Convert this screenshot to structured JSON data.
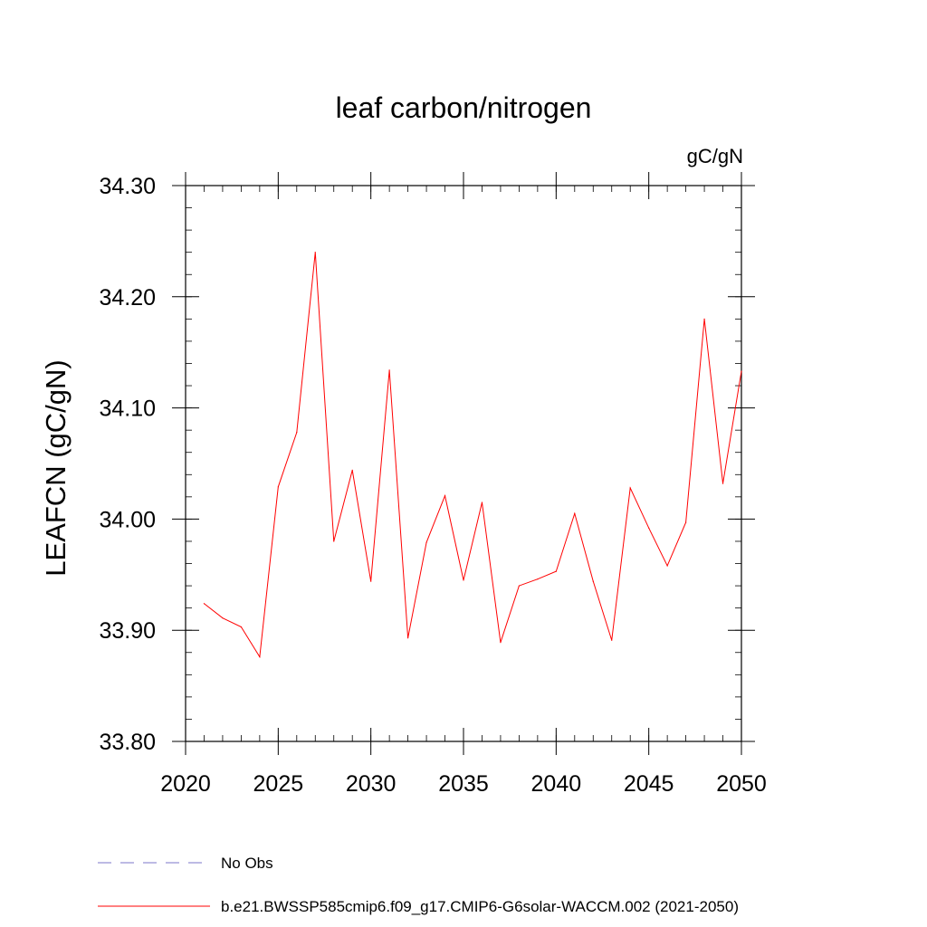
{
  "chart_data": {
    "type": "line",
    "title": "leaf carbon/nitrogen",
    "units": "gC/gN",
    "ylabel": "LEAFCN  (gC/gN)",
    "xlabel": "",
    "xlim": [
      2020,
      2050
    ],
    "ylim": [
      33.8,
      34.3
    ],
    "x_major_ticks": [
      2020,
      2025,
      2030,
      2035,
      2040,
      2045,
      2050
    ],
    "x_tick_labels": [
      "2020",
      "2025",
      "2030",
      "2035",
      "2040",
      "2045",
      "2050"
    ],
    "y_major_ticks": [
      33.8,
      33.9,
      34.0,
      34.1,
      34.2,
      34.3
    ],
    "y_tick_labels": [
      "33.80",
      "33.90",
      "34.00",
      "34.10",
      "34.20",
      "34.30"
    ],
    "x_minor_step": 1,
    "y_minor_step": 0.02,
    "grid": false,
    "series": [
      {
        "name": "b.e21.BWSSP585cmip6.f09_g17.CMIP6-G6solar-WACCM.002 (2021-2050)",
        "color": "#ff0000",
        "style": "solid",
        "x": [
          2021,
          2022,
          2023,
          2024,
          2025,
          2026,
          2027,
          2028,
          2029,
          2030,
          2031,
          2032,
          2033,
          2034,
          2035,
          2036,
          2037,
          2038,
          2039,
          2040,
          2041,
          2042,
          2043,
          2044,
          2045,
          2046,
          2047,
          2048,
          2049,
          2050
        ],
        "values": [
          33.924,
          33.911,
          33.903,
          33.876,
          34.029,
          34.078,
          34.24,
          33.98,
          34.044,
          33.944,
          34.134,
          33.893,
          33.979,
          34.021,
          33.945,
          34.015,
          33.889,
          33.94,
          33.946,
          33.953,
          34.005,
          33.944,
          33.891,
          34.028,
          33.992,
          33.958,
          33.997,
          34.18,
          34.032,
          34.133
        ]
      }
    ],
    "legend": {
      "placement": "bottom-left",
      "entries": [
        {
          "label": "No Obs",
          "color": "#7b74c8",
          "style": "dashed"
        },
        {
          "label": "b.e21.BWSSP585cmip6.f09_g17.CMIP6-G6solar-WACCM.002 (2021-2050)",
          "color": "#ff0000",
          "style": "solid"
        }
      ]
    }
  }
}
